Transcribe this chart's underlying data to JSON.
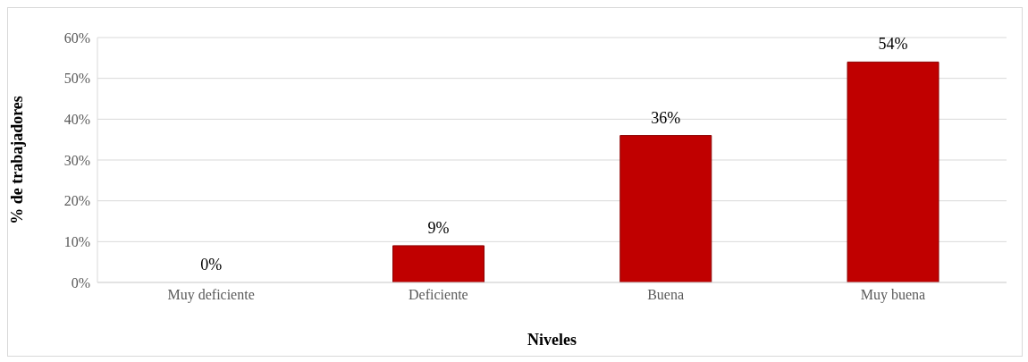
{
  "chart_data": {
    "type": "bar",
    "xlabel": "Niveles",
    "ylabel": "% de trabajadores",
    "categories": [
      "Muy deficiente",
      "Deficiente",
      "Buena",
      "Muy buena"
    ],
    "values": [
      0,
      9,
      36,
      54
    ],
    "color": "#c00000",
    "value_labels": [
      "0%",
      "9%",
      "36%",
      "54%"
    ],
    "ylim": [
      0,
      60
    ],
    "yticks": [
      {
        "value": 0,
        "label": "0%"
      },
      {
        "value": 10,
        "label": "10%"
      },
      {
        "value": 20,
        "label": "20%"
      },
      {
        "value": 30,
        "label": "30%"
      },
      {
        "value": 40,
        "label": "40%"
      },
      {
        "value": 50,
        "label": "50%"
      },
      {
        "value": 60,
        "label": "60%"
      }
    ],
    "grid": "y",
    "legend": false
  }
}
